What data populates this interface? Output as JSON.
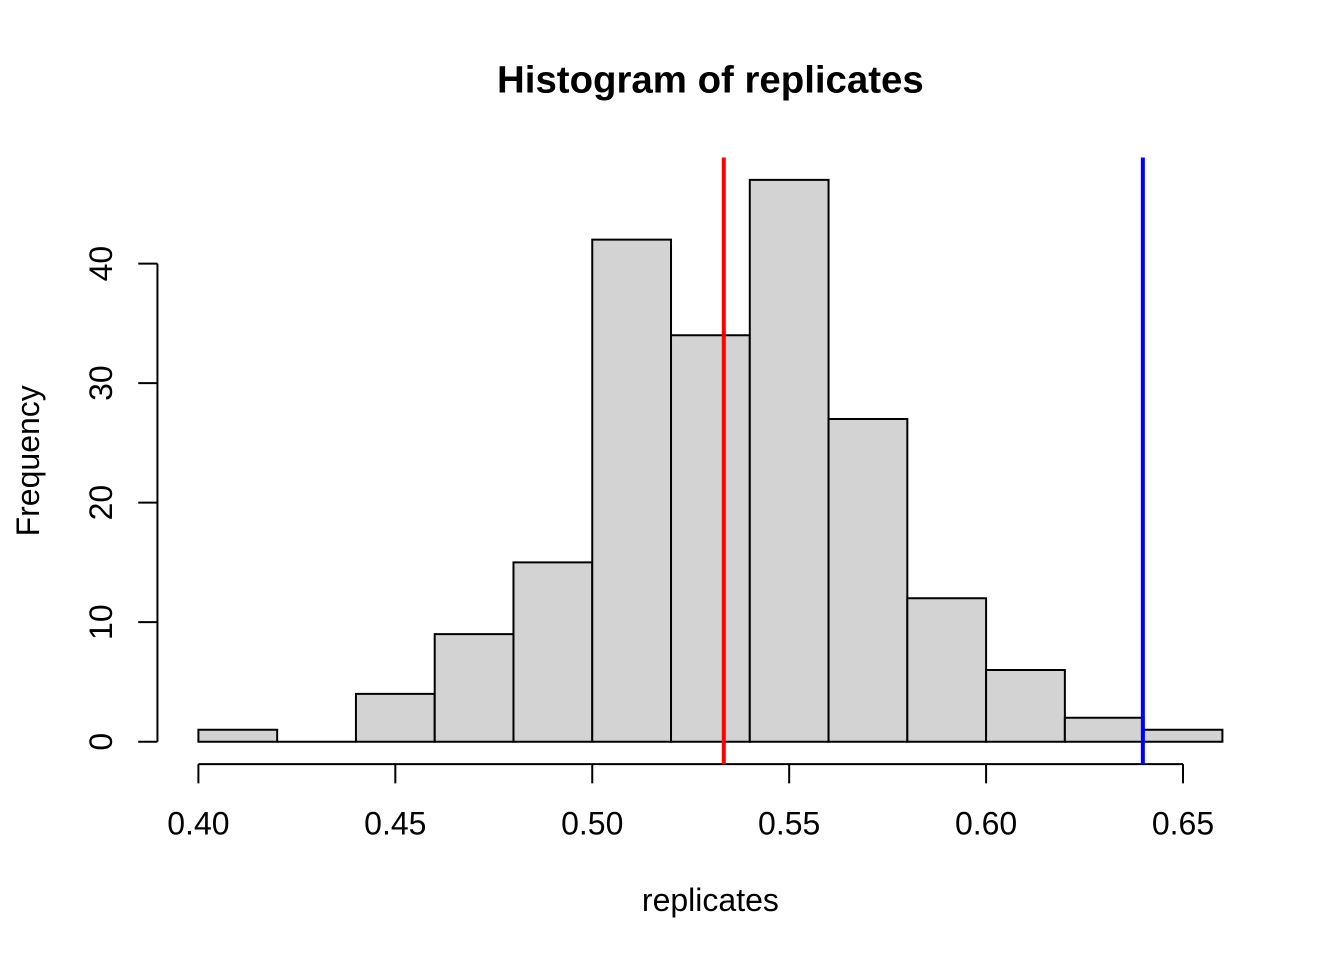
{
  "page": {
    "background": "#FFFFFF"
  },
  "chart_data": {
    "type": "bar",
    "subtype": "histogram",
    "title": "Histogram of replicates",
    "xlabel": "replicates",
    "ylabel": "Frequency",
    "bin_breaks": [
      0.4,
      0.42,
      0.44,
      0.46,
      0.48,
      0.5,
      0.52,
      0.54,
      0.56,
      0.58,
      0.6,
      0.62,
      0.64,
      0.66
    ],
    "counts": [
      1,
      0,
      4,
      9,
      15,
      42,
      34,
      47,
      27,
      12,
      6,
      2,
      1
    ],
    "x_ticks": [
      0.4,
      0.45,
      0.5,
      0.55,
      0.6,
      0.65
    ],
    "x_tick_labels": [
      "0.40",
      "0.45",
      "0.50",
      "0.55",
      "0.60",
      "0.65"
    ],
    "y_ticks": [
      0,
      10,
      20,
      30,
      40
    ],
    "y_tick_labels": [
      "0",
      "10",
      "20",
      "30",
      "40"
    ],
    "xlim": [
      0.4,
      0.66
    ],
    "ylim": [
      0,
      47
    ],
    "axis_expansion": 0.04,
    "bar_fill": "#D3D3D3",
    "bar_stroke": "#000000",
    "axis_color": "#000000",
    "vlines": [
      {
        "x": 0.5334,
        "color": "#FF0000",
        "name": "red-vline"
      },
      {
        "x": 0.6398,
        "color": "#0000FF",
        "name": "blue-vline"
      }
    ],
    "grid": false,
    "legend": "none"
  }
}
